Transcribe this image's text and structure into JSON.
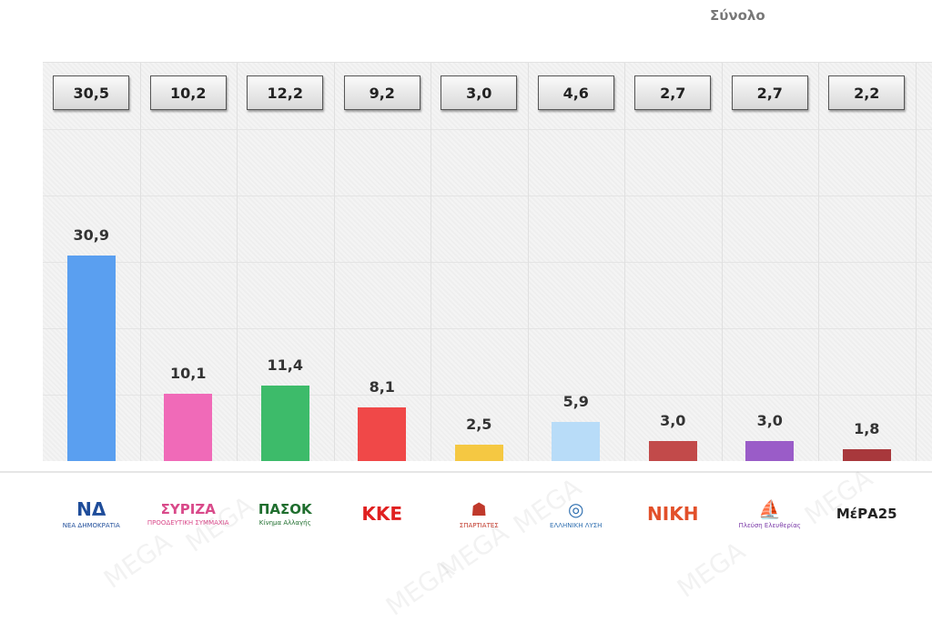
{
  "chart_data": {
    "type": "bar",
    "title": "Σύνολο",
    "categories": [
      "ΝΔ",
      "ΣΥΡΙΖΑ",
      "ΠΑΣΟΚ",
      "ΚΚΕ",
      "Σπαρτιάτες",
      "Ελληνική Λύση",
      "ΝΙΚΗ",
      "Πλεύση Ελευθερίας",
      "ΜέΡΑ25"
    ],
    "values": [
      30.9,
      10.1,
      11.4,
      8.1,
      2.5,
      5.9,
      3.0,
      3.0,
      1.8
    ],
    "value_labels": [
      "30,9",
      "10,1",
      "11,4",
      "8,1",
      "2,5",
      "5,9",
      "3,0",
      "3,0",
      "1,8"
    ],
    "comparison_values": [
      30.5,
      10.2,
      12.2,
      9.2,
      3.0,
      4.6,
      2.7,
      2.7,
      2.2
    ],
    "comparison_labels": [
      "30,5",
      "10,2",
      "12,2",
      "9,2",
      "3,0",
      "4,6",
      "2,7",
      "2,7",
      "2,2"
    ],
    "colors": [
      "#5a9ff0",
      "#f06ab8",
      "#3dbb6a",
      "#f04848",
      "#f5c842",
      "#b8dcf8",
      "#c24a4a",
      "#9a5cc8",
      "#a8383c"
    ],
    "ylim": [
      0,
      60
    ],
    "grid": true,
    "logos": [
      {
        "text": "ΝΔ",
        "sub": "ΝΕΑ ΔΗΜΟΚΡΑΤΙΑ",
        "color": "#1f4d9a"
      },
      {
        "text": "ΣΥΡΙΖΑ",
        "sub": "ΠΡΟΟΔΕΥΤΙΚΗ ΣΥΜΜΑΧΙΑ",
        "color": "#d94a8a"
      },
      {
        "text": "ΠΑΣΟΚ",
        "sub": "Κίνημα Αλλαγής",
        "color": "#1f6e2e"
      },
      {
        "text": "ΚΚΕ",
        "sub": "",
        "color": "#e02020"
      },
      {
        "text": "☗",
        "sub": "ΣΠΑΡΤΙΑΤΕΣ",
        "color": "#c0392b"
      },
      {
        "text": "◎",
        "sub": "ΕΛΛΗΝΙΚΗ ΛΥΣΗ",
        "color": "#2f6fb0"
      },
      {
        "text": "ΝΙΚΗ",
        "sub": "",
        "color": "#e2502a"
      },
      {
        "text": "⛵",
        "sub": "Πλεύση Ελευθερίας",
        "color": "#7a3aa8"
      },
      {
        "text": "ΜέΡΑ25",
        "sub": "",
        "color": "#222"
      }
    ]
  },
  "watermark": "MEGA"
}
